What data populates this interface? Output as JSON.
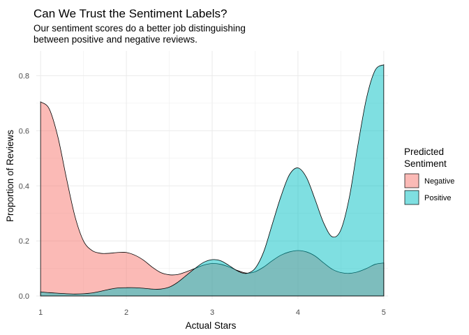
{
  "chart_data": {
    "type": "area",
    "title": "Can We Trust the Sentiment Labels?",
    "subtitle": [
      "Our sentiment scores do a better job distinguishing",
      "between positive and negative reviews."
    ],
    "xlabel": "Actual Stars",
    "ylabel": "Proportion of Reviews",
    "xlim": [
      0.95,
      5.05
    ],
    "ylim": [
      -0.01,
      0.89
    ],
    "x_ticks": [
      1,
      2,
      3,
      4,
      5
    ],
    "y_ticks": [
      0.0,
      0.2,
      0.4,
      0.6,
      0.8
    ],
    "y_tick_labels": [
      "0.0",
      "0.2",
      "0.4",
      "0.6",
      "0.8"
    ],
    "grid": true,
    "legend_position": "right",
    "legend_title": [
      "Predicted",
      "Sentiment"
    ],
    "series": [
      {
        "name": "Negative",
        "color": "#F8766D",
        "x": [
          1.0,
          1.1,
          1.2,
          1.3,
          1.4,
          1.5,
          1.6,
          1.7,
          1.8,
          1.9,
          2.0,
          2.1,
          2.2,
          2.3,
          2.4,
          2.5,
          2.6,
          2.7,
          2.8,
          2.9,
          3.0,
          3.1,
          3.2,
          3.3,
          3.4,
          3.5,
          3.6,
          3.7,
          3.8,
          3.9,
          4.0,
          4.1,
          4.2,
          4.3,
          4.4,
          4.5,
          4.6,
          4.7,
          4.8,
          4.9,
          5.0
        ],
        "values": [
          0.705,
          0.68,
          0.58,
          0.43,
          0.29,
          0.2,
          0.165,
          0.155,
          0.155,
          0.158,
          0.158,
          0.148,
          0.13,
          0.105,
          0.085,
          0.077,
          0.078,
          0.088,
          0.1,
          0.112,
          0.118,
          0.115,
          0.105,
          0.092,
          0.083,
          0.088,
          0.105,
          0.128,
          0.148,
          0.16,
          0.165,
          0.16,
          0.145,
          0.12,
          0.097,
          0.085,
          0.082,
          0.088,
          0.1,
          0.115,
          0.12
        ]
      },
      {
        "name": "Positive",
        "color": "#00BFC4",
        "x": [
          1.0,
          1.1,
          1.2,
          1.3,
          1.4,
          1.5,
          1.6,
          1.7,
          1.8,
          1.9,
          2.0,
          2.1,
          2.2,
          2.3,
          2.4,
          2.5,
          2.6,
          2.7,
          2.8,
          2.9,
          3.0,
          3.1,
          3.2,
          3.3,
          3.4,
          3.5,
          3.6,
          3.7,
          3.8,
          3.9,
          4.0,
          4.1,
          4.2,
          4.3,
          4.4,
          4.5,
          4.6,
          4.7,
          4.8,
          4.9,
          5.0
        ],
        "values": [
          0.015,
          0.012,
          0.01,
          0.008,
          0.007,
          0.008,
          0.011,
          0.017,
          0.024,
          0.029,
          0.03,
          0.03,
          0.028,
          0.025,
          0.025,
          0.032,
          0.05,
          0.075,
          0.1,
          0.122,
          0.132,
          0.128,
          0.11,
          0.09,
          0.082,
          0.1,
          0.16,
          0.26,
          0.36,
          0.44,
          0.465,
          0.43,
          0.35,
          0.265,
          0.215,
          0.24,
          0.36,
          0.55,
          0.72,
          0.82,
          0.84
        ]
      }
    ]
  }
}
